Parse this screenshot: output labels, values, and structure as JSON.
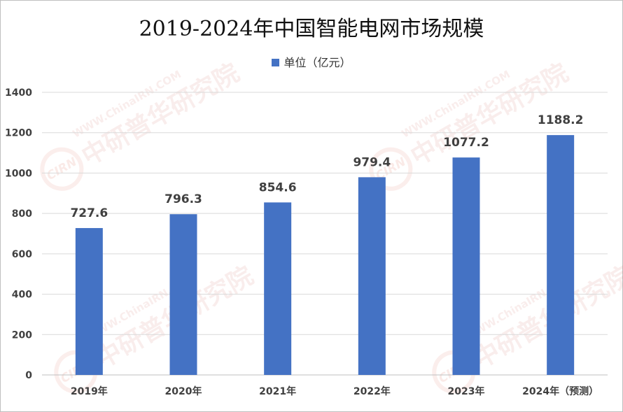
{
  "chart_data": {
    "type": "bar",
    "title": "2019-2024年中国智能电网市场规模",
    "legend": "单位（亿元）",
    "legend_position": "top",
    "categories": [
      "2019年",
      "2020年",
      "2021年",
      "2022年",
      "2023年",
      "2024年（预测）"
    ],
    "series": [
      {
        "name": "单位（亿元）",
        "values": [
          727.6,
          796.3,
          854.6,
          979.4,
          1077.2,
          1188.2
        ],
        "labels": [
          "727.6",
          "796.3",
          "854.6",
          "979.4",
          "1077.2",
          "1188.2"
        ]
      }
    ],
    "ylim": [
      0,
      1400
    ],
    "yticks": [
      0,
      200,
      400,
      600,
      800,
      1000,
      1200,
      1400
    ],
    "grid": true,
    "colors": {
      "bar": "#4472c4",
      "grid": "#d9d9d9",
      "axis": "#bfbfbf"
    }
  },
  "watermark": {
    "logo": "CIRN",
    "name": "中研普华研究院",
    "url": "WWW.ChinaIRN.COM"
  }
}
